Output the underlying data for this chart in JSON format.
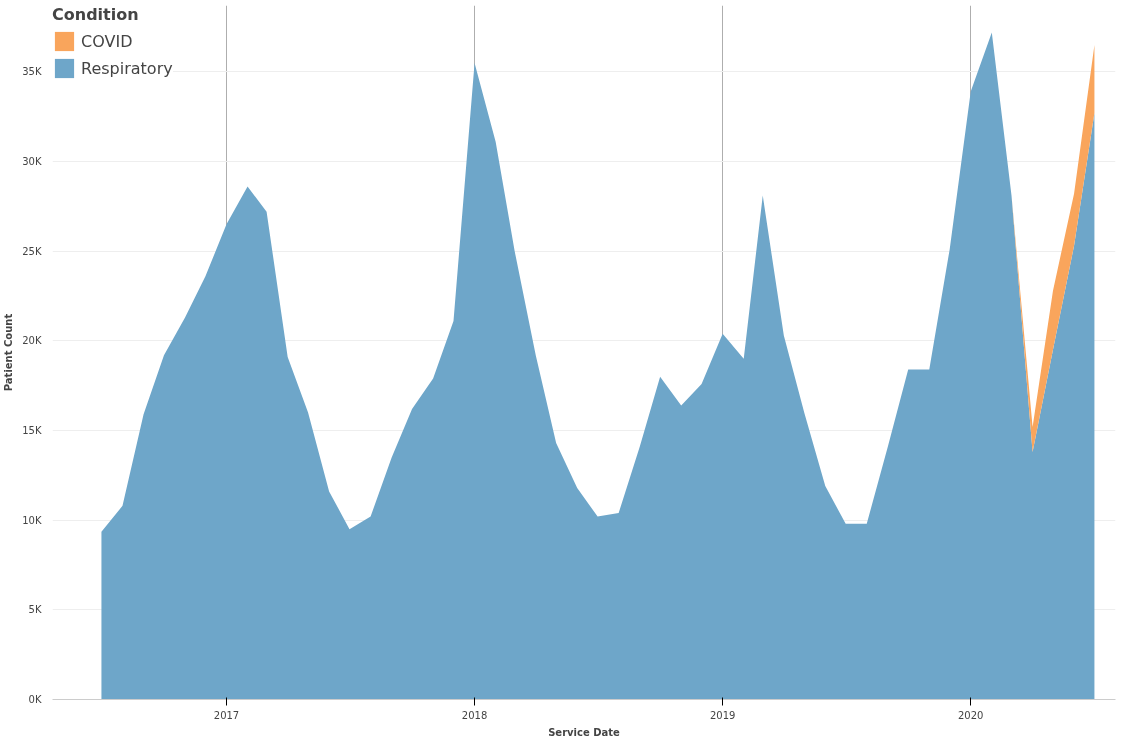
{
  "chart_data": {
    "type": "area",
    "stacked": true,
    "xlabel": "Service Date",
    "ylabel": "Patient Count",
    "legend_title": "Condition",
    "legend": "top left",
    "grid": true,
    "x": [
      "2016-07",
      "2016-08",
      "2016-09",
      "2016-10",
      "2016-11",
      "2016-12",
      "2017-01",
      "2017-02",
      "2017-03",
      "2017-04",
      "2017-05",
      "2017-06",
      "2017-07",
      "2017-08",
      "2017-09",
      "2017-10",
      "2017-11",
      "2017-12",
      "2018-01",
      "2018-02",
      "2018-03",
      "2018-04",
      "2018-05",
      "2018-06",
      "2018-07",
      "2018-08",
      "2018-09",
      "2018-10",
      "2018-11",
      "2018-12",
      "2019-01",
      "2019-02",
      "2019-03",
      "2019-04",
      "2019-05",
      "2019-06",
      "2019-07",
      "2019-08",
      "2019-09",
      "2019-10",
      "2019-11",
      "2019-12",
      "2020-01",
      "2020-02",
      "2020-03",
      "2020-04",
      "2020-05",
      "2020-06",
      "2020-07"
    ],
    "series": [
      {
        "name": "Respiratory",
        "color": "#6ea6c9",
        "values": [
          9350,
          10800,
          15900,
          19200,
          21300,
          23600,
          26500,
          28600,
          27200,
          19100,
          16000,
          11600,
          9500,
          10200,
          13500,
          16200,
          17900,
          21100,
          35500,
          31100,
          25000,
          19200,
          14300,
          11800,
          10200,
          10400,
          14100,
          18000,
          16400,
          17600,
          20400,
          19000,
          28100,
          20300,
          16000,
          11900,
          9800,
          9800,
          14100,
          18400,
          18400,
          25100,
          33900,
          37200,
          28100,
          13800,
          19500,
          25300,
          32700
        ]
      },
      {
        "name": "COVID",
        "color": "#f9a55c",
        "values": [
          null,
          null,
          null,
          null,
          null,
          null,
          null,
          null,
          null,
          null,
          null,
          null,
          null,
          null,
          null,
          null,
          null,
          null,
          null,
          null,
          null,
          null,
          null,
          null,
          null,
          null,
          null,
          null,
          null,
          null,
          null,
          null,
          null,
          null,
          null,
          null,
          null,
          null,
          null,
          null,
          null,
          null,
          null,
          null,
          0,
          1400,
          3300,
          2900,
          3800
        ]
      }
    ],
    "xlim": [
      "2016-04-20",
      "2020-08-01"
    ],
    "xticks": [
      {
        "value": "2017-01",
        "label": "2017"
      },
      {
        "value": "2018-01",
        "label": "2018"
      },
      {
        "value": "2019-01",
        "label": "2019"
      },
      {
        "value": "2020-01",
        "label": "2020"
      }
    ],
    "ylim": [
      0,
      38700
    ],
    "yticks": [
      {
        "value": 0,
        "label": "0K"
      },
      {
        "value": 5000,
        "label": "5K"
      },
      {
        "value": 10000,
        "label": "10K"
      },
      {
        "value": 15000,
        "label": "15K"
      },
      {
        "value": 20000,
        "label": "20K"
      },
      {
        "value": 25000,
        "label": "25K"
      },
      {
        "value": 30000,
        "label": "30K"
      },
      {
        "value": 35000,
        "label": "35K"
      }
    ]
  }
}
